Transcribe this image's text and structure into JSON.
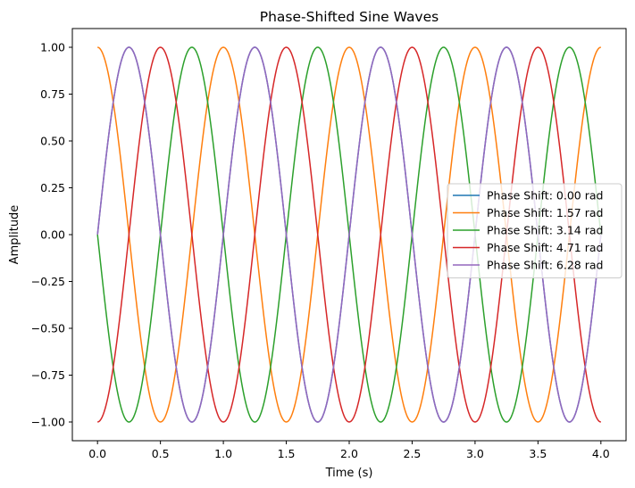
{
  "chart_data": {
    "type": "line",
    "title": "Phase-Shifted Sine Waves",
    "xlabel": "Time (s)",
    "ylabel": "Amplitude",
    "xlim": [
      -0.2,
      4.2
    ],
    "ylim": [
      -1.1,
      1.1
    ],
    "x_range": [
      0,
      4
    ],
    "frequency_hz": 1,
    "x_ticks": [
      {
        "value": 0.0,
        "label": "0.0"
      },
      {
        "value": 0.5,
        "label": "0.5"
      },
      {
        "value": 1.0,
        "label": "1.0"
      },
      {
        "value": 1.5,
        "label": "1.5"
      },
      {
        "value": 2.0,
        "label": "2.0"
      },
      {
        "value": 2.5,
        "label": "2.5"
      },
      {
        "value": 3.0,
        "label": "3.0"
      },
      {
        "value": 3.5,
        "label": "3.5"
      },
      {
        "value": 4.0,
        "label": "4.0"
      }
    ],
    "y_ticks": [
      {
        "value": 1.0,
        "label": "1.00"
      },
      {
        "value": 0.75,
        "label": "0.75"
      },
      {
        "value": 0.5,
        "label": "0.50"
      },
      {
        "value": 0.25,
        "label": "0.25"
      },
      {
        "value": 0.0,
        "label": "0.00"
      },
      {
        "value": -0.25,
        "label": "−0.25"
      },
      {
        "value": -0.5,
        "label": "−0.50"
      },
      {
        "value": -0.75,
        "label": "−0.75"
      },
      {
        "value": -1.0,
        "label": "−1.00"
      }
    ],
    "grid": false,
    "legend_position": "center-right",
    "series": [
      {
        "name": "Phase Shift: 0.00 rad",
        "phase": 0.0,
        "color": "#1f77b4"
      },
      {
        "name": "Phase Shift: 1.57 rad",
        "phase": 1.5708,
        "color": "#ff7f0e"
      },
      {
        "name": "Phase Shift: 3.14 rad",
        "phase": 3.1416,
        "color": "#2ca02c"
      },
      {
        "name": "Phase Shift: 4.71 rad",
        "phase": 4.7124,
        "color": "#d62728"
      },
      {
        "name": "Phase Shift: 6.28 rad",
        "phase": 6.2832,
        "color": "#9467bd"
      }
    ]
  }
}
